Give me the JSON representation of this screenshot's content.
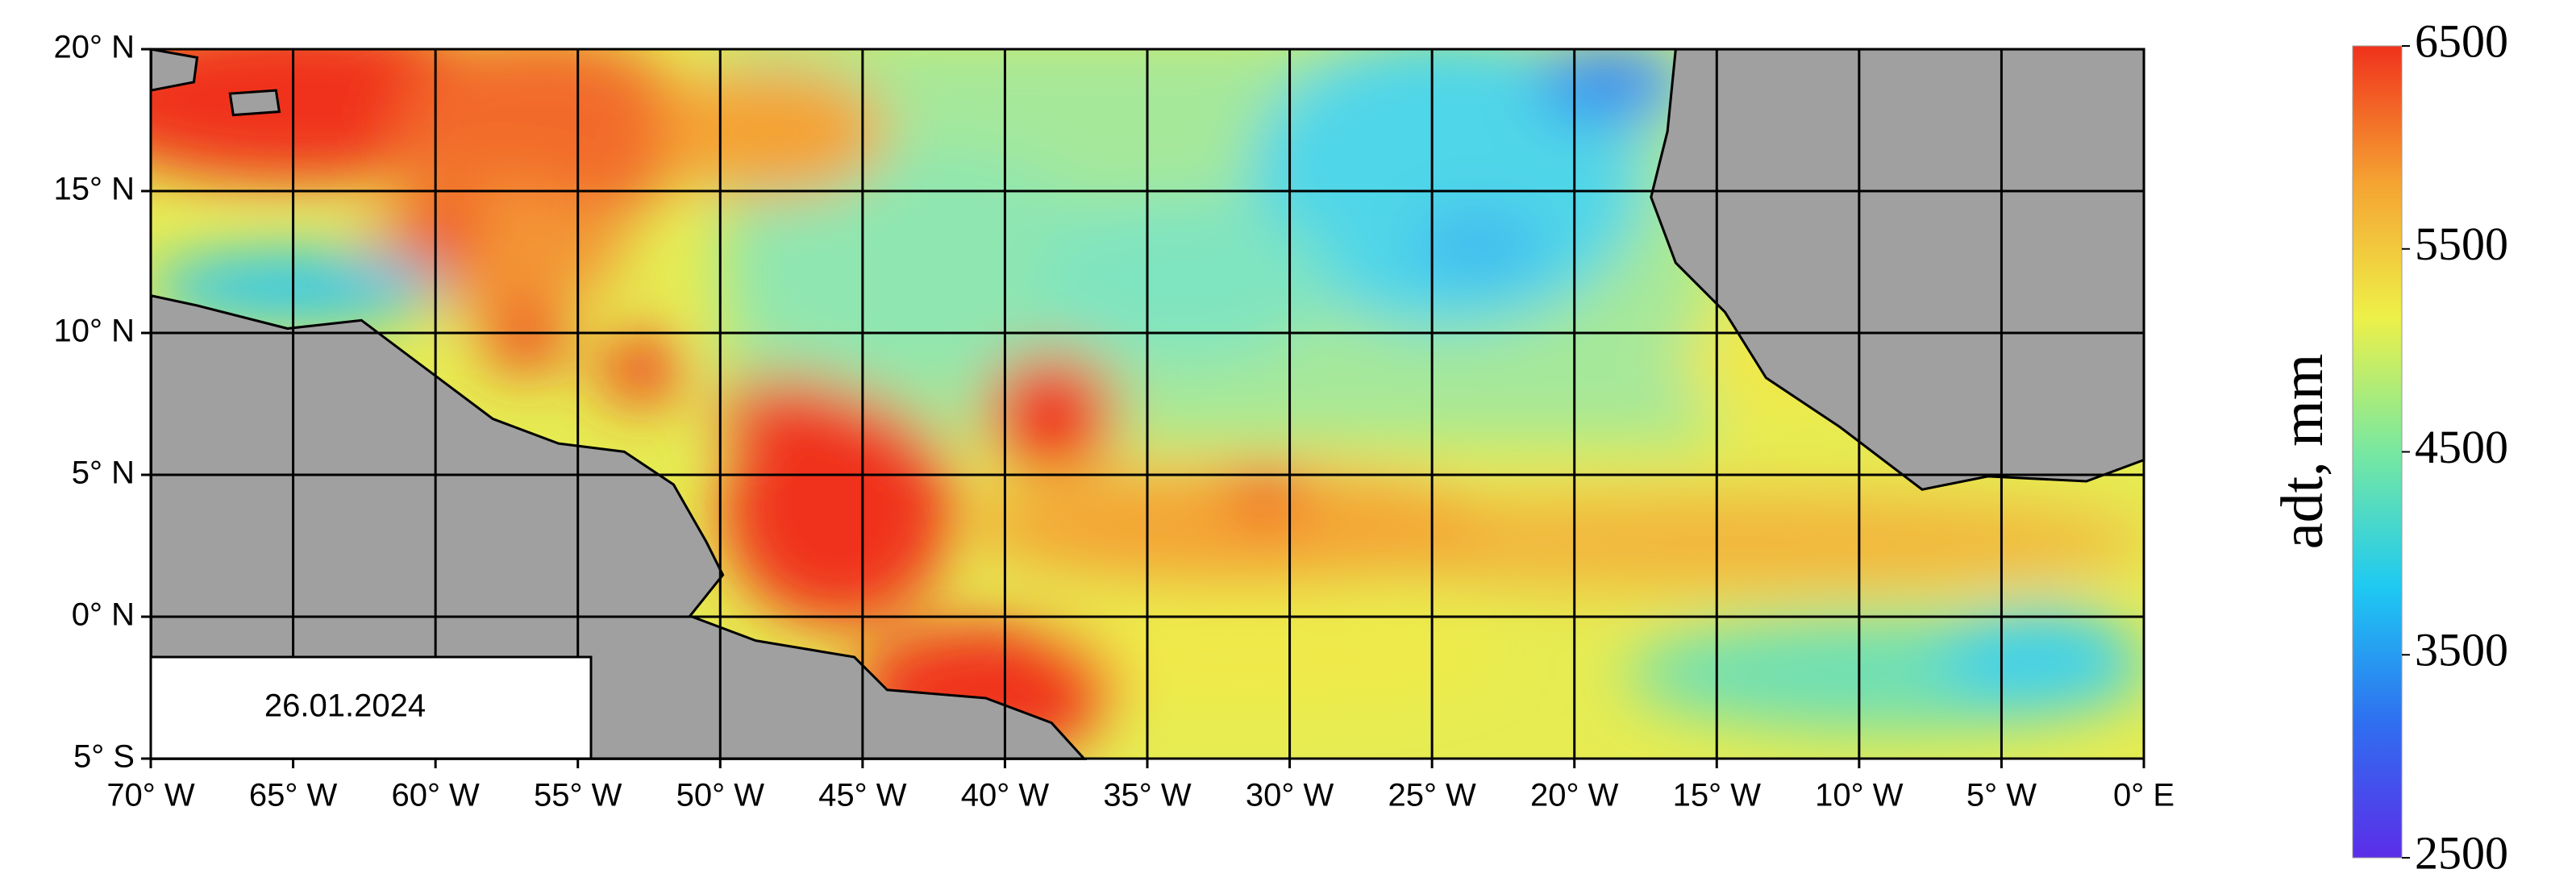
{
  "map": {
    "lon_range": [
      -70,
      0
    ],
    "lat_range": [
      -5,
      20
    ],
    "lon_ticks": [
      {
        "value": -70,
        "label": "70° W"
      },
      {
        "value": -65,
        "label": "65° W"
      },
      {
        "value": -60,
        "label": "60° W"
      },
      {
        "value": -55,
        "label": "55° W"
      },
      {
        "value": -50,
        "label": "50° W"
      },
      {
        "value": -45,
        "label": "45° W"
      },
      {
        "value": -40,
        "label": "40° W"
      },
      {
        "value": -35,
        "label": "35° W"
      },
      {
        "value": -30,
        "label": "30° W"
      },
      {
        "value": -25,
        "label": "25° W"
      },
      {
        "value": -20,
        "label": "20° W"
      },
      {
        "value": -15,
        "label": "15° W"
      },
      {
        "value": -10,
        "label": "10° W"
      },
      {
        "value": -5,
        "label": "5° W"
      },
      {
        "value": 0,
        "label": "0° E"
      }
    ],
    "lat_ticks": [
      {
        "value": 20,
        "label": "20° N"
      },
      {
        "value": 15,
        "label": "15° N"
      },
      {
        "value": 10,
        "label": "10° N"
      },
      {
        "value": 5,
        "label": "5° N"
      },
      {
        "value": 0,
        "label": "0° N"
      },
      {
        "value": -5,
        "label": "5° S"
      }
    ],
    "date_label": "26.01.2024"
  },
  "colorbar": {
    "label": "adt, mm",
    "range": [
      2500,
      6500
    ],
    "ticks": [
      2500,
      3500,
      4500,
      5500,
      6500
    ],
    "colors": [
      "#5b2de8",
      "#2f6ff0",
      "#1ec9f2",
      "#78e8a0",
      "#eef048",
      "#f5a232",
      "#f0321c"
    ]
  }
}
